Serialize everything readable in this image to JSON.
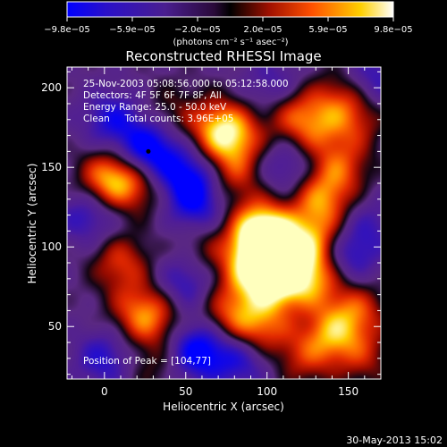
{
  "chart_data": {
    "type": "heatmap",
    "title": "Reconstructed RHESSI Image",
    "xlabel": "Heliocentric X (arcsec)",
    "ylabel": "Heliocentric Y (arcsec)",
    "xlim": [
      -23,
      170
    ],
    "ylim": [
      17,
      213
    ],
    "x_ticks": [
      "0",
      "50",
      "100",
      "150"
    ],
    "y_ticks": [
      "50",
      "100",
      "150",
      "200"
    ],
    "colorbar": {
      "range": [
        -9.8e-05,
        9.8e-05
      ],
      "tick_labels": [
        "−9.8e−05",
        "−5.9e−05",
        "−2.0e−05",
        "2.0e−05",
        "5.9e−05",
        "9.8e−05"
      ],
      "units_label": "(photons cm⁻² s⁻¹ asec⁻²)"
    },
    "annotations": [
      "25-Nov-2003 05:08:56.000 to 05:12:58.000",
      "Detectors: 4F 5F 6F 7F 8F, All",
      "Energy Range: 25.0 - 50.0 keV",
      "Clean     Total counts: 3.96E+05"
    ],
    "peak_label": "Position of Peak = [104,77]",
    "peak_position": [
      104,
      77
    ],
    "footer_timestamp": "30-May-2013 15:02",
    "colormap": [
      "#0000ff",
      "#3a0aa8",
      "#5a2a8a",
      "#111111",
      "#c01000",
      "#ff6a00",
      "#ffd400",
      "#ffffc0"
    ],
    "blobs": [
      {
        "x": 104,
        "y": 77,
        "v": 1.0
      },
      {
        "x": 98,
        "y": 100,
        "v": 0.9
      },
      {
        "x": 96,
        "y": 112,
        "v": 0.95
      },
      {
        "x": 110,
        "y": 95,
        "v": 0.7
      },
      {
        "x": 86,
        "y": 85,
        "v": 0.55
      },
      {
        "x": 128,
        "y": 80,
        "v": 0.8
      },
      {
        "x": 130,
        "y": 105,
        "v": 0.7
      },
      {
        "x": 133,
        "y": 130,
        "v": 0.75
      },
      {
        "x": 145,
        "y": 150,
        "v": 0.6
      },
      {
        "x": 162,
        "y": 118,
        "v": 0.55
      },
      {
        "x": 140,
        "y": 45,
        "v": 0.75
      },
      {
        "x": 155,
        "y": 60,
        "v": 0.6
      },
      {
        "x": 95,
        "y": 48,
        "v": 0.75
      },
      {
        "x": 76,
        "y": 58,
        "v": 0.6
      },
      {
        "x": 30,
        "y": 55,
        "v": 0.55
      },
      {
        "x": 20,
        "y": 60,
        "v": 0.45
      },
      {
        "x": 10,
        "y": 90,
        "v": 0.6
      },
      {
        "x": 0,
        "y": 140,
        "v": 0.45
      },
      {
        "x": 5,
        "y": 145,
        "v": 0.5
      },
      {
        "x": 20,
        "y": 140,
        "v": 0.55
      },
      {
        "x": 80,
        "y": 145,
        "v": 0.5
      },
      {
        "x": 70,
        "y": 175,
        "v": 0.75
      },
      {
        "x": 80,
        "y": 168,
        "v": 0.65
      },
      {
        "x": 115,
        "y": 185,
        "v": 0.55
      },
      {
        "x": 130,
        "y": 175,
        "v": 0.55
      },
      {
        "x": 145,
        "y": 195,
        "v": 0.45
      },
      {
        "x": 155,
        "y": 180,
        "v": 0.45
      },
      {
        "x": 40,
        "y": 185,
        "v": 0.3
      },
      {
        "x": 30,
        "y": 25,
        "v": 0.3
      },
      {
        "x": 122,
        "y": 30,
        "v": 0.45
      },
      {
        "x": 160,
        "y": 30,
        "v": 0.4
      },
      {
        "x": 60,
        "y": 100,
        "v": 0.35
      },
      {
        "x": 45,
        "y": 130,
        "v": 0.3
      },
      {
        "x": -10,
        "y": 120,
        "v": -0.55
      },
      {
        "x": 50,
        "y": 142,
        "v": -0.9
      },
      {
        "x": 27,
        "y": 160,
        "v": -1.0
      },
      {
        "x": 55,
        "y": 125,
        "v": -0.7
      },
      {
        "x": 58,
        "y": 35,
        "v": -0.9
      },
      {
        "x": 5,
        "y": 180,
        "v": -0.6
      },
      {
        "x": 163,
        "y": 117,
        "v": -0.85
      },
      {
        "x": 0,
        "y": 30,
        "v": -0.55
      },
      {
        "x": 150,
        "y": 95,
        "v": -0.6
      },
      {
        "x": 112,
        "y": 150,
        "v": -0.45
      },
      {
        "x": 85,
        "y": 30,
        "v": -0.6
      },
      {
        "x": 50,
        "y": 78,
        "v": -0.55
      },
      {
        "x": 105,
        "y": 200,
        "v": -0.45
      },
      {
        "x": 165,
        "y": 205,
        "v": -0.5
      }
    ]
  }
}
